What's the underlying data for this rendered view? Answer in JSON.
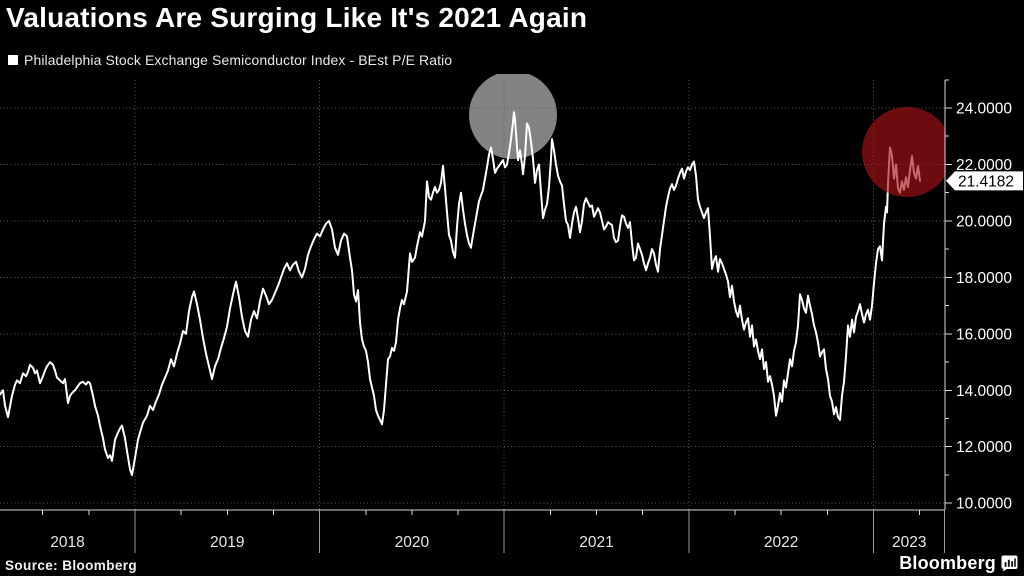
{
  "header": {
    "title": "Valuations Are Surging Like It's 2021 Again",
    "legend_label": "Philadelphia Stock Exchange Semiconductor Index - BEst P/E Ratio"
  },
  "footer": {
    "source": "Source: Bloomberg",
    "brand": "Bloomberg"
  },
  "colors": {
    "background": "#000000",
    "line": "#ffffff",
    "grid": "#5d5d5d",
    "axis": "#d9d9d9",
    "tick_label": "#ffffff",
    "year_label": "#e6e6e6",
    "gray_highlight": "#8e8e8e",
    "red_highlight": "#aa1216",
    "tag_bg": "#ffffff",
    "tag_text": "#000000"
  },
  "chart_data": {
    "type": "line",
    "title": "Valuations Are Surging Like It's 2021 Again",
    "series_name": "Philadelphia Stock Exchange Semiconductor Index - BEst P/E Ratio",
    "ylim": [
      10,
      24
    ],
    "y_major_ticks": [
      {
        "value": 24,
        "label": "24.0000"
      },
      {
        "value": 22,
        "label": "22.0000"
      },
      {
        "value": 20,
        "label": "20.0000"
      },
      {
        "value": 18,
        "label": "18.0000"
      },
      {
        "value": 16,
        "label": "16.0000"
      },
      {
        "value": 14,
        "label": "14.0000"
      },
      {
        "value": 12,
        "label": "12.0000"
      },
      {
        "value": 10,
        "label": "10.0000"
      }
    ],
    "y_minor_ticks": [
      25,
      23,
      21,
      19,
      17,
      15,
      13,
      11
    ],
    "x_year_labels": [
      "2018",
      "2019",
      "2020",
      "2021",
      "2022",
      "2023"
    ],
    "grid": "dotted",
    "legend_position": "top-left",
    "last_value": 21.4182,
    "last_value_label": "21.4182",
    "annotations": [
      {
        "shape": "circle",
        "note": "2020-21 peak highlight",
        "color": "#8e8e8e",
        "opacity": 0.92,
        "layer": "under-line"
      },
      {
        "shape": "circle",
        "note": "2023 surge highlight",
        "color": "#aa1216",
        "opacity": 0.64,
        "layer": "over-line"
      }
    ],
    "points": [
      [
        0,
        13.85
      ],
      [
        3,
        14.0
      ],
      [
        5,
        13.45
      ],
      [
        8,
        13.05
      ],
      [
        12,
        13.8
      ],
      [
        15,
        14.2
      ],
      [
        17,
        14.35
      ],
      [
        20,
        14.25
      ],
      [
        23,
        14.6
      ],
      [
        26,
        14.5
      ],
      [
        28,
        14.65
      ],
      [
        30,
        14.9
      ],
      [
        33,
        14.8
      ],
      [
        35,
        14.6
      ],
      [
        37,
        14.7
      ],
      [
        40,
        14.25
      ],
      [
        43,
        14.5
      ],
      [
        45,
        14.7
      ],
      [
        47,
        14.85
      ],
      [
        50,
        15.0
      ],
      [
        53,
        14.9
      ],
      [
        55,
        14.7
      ],
      [
        57,
        14.45
      ],
      [
        60,
        14.35
      ],
      [
        63,
        14.25
      ],
      [
        65,
        14.4
      ],
      [
        68,
        13.55
      ],
      [
        70,
        13.8
      ],
      [
        72,
        13.9
      ],
      [
        75,
        14.0
      ],
      [
        78,
        14.15
      ],
      [
        80,
        14.25
      ],
      [
        83,
        14.3
      ],
      [
        86,
        14.2
      ],
      [
        88,
        14.3
      ],
      [
        90,
        14.25
      ],
      [
        93,
        13.8
      ],
      [
        95,
        13.45
      ],
      [
        98,
        13.1
      ],
      [
        100,
        12.75
      ],
      [
        103,
        12.3
      ],
      [
        105,
        11.9
      ],
      [
        108,
        11.6
      ],
      [
        110,
        11.7
      ],
      [
        112,
        11.5
      ],
      [
        115,
        12.25
      ],
      [
        118,
        12.5
      ],
      [
        120,
        12.65
      ],
      [
        122,
        12.75
      ],
      [
        125,
        12.3
      ],
      [
        127,
        11.85
      ],
      [
        130,
        11.2
      ],
      [
        132,
        11.0
      ],
      [
        135,
        11.6
      ],
      [
        138,
        12.25
      ],
      [
        140,
        12.5
      ],
      [
        143,
        12.85
      ],
      [
        147,
        13.1
      ],
      [
        150,
        13.45
      ],
      [
        153,
        13.3
      ],
      [
        156,
        13.6
      ],
      [
        159,
        13.85
      ],
      [
        162,
        14.2
      ],
      [
        165,
        14.45
      ],
      [
        168,
        14.7
      ],
      [
        171,
        15.1
      ],
      [
        174,
        14.85
      ],
      [
        177,
        15.3
      ],
      [
        180,
        15.65
      ],
      [
        183,
        16.1
      ],
      [
        186,
        16.0
      ],
      [
        189,
        16.8
      ],
      [
        192,
        17.3
      ],
      [
        194,
        17.5
      ],
      [
        197,
        17.05
      ],
      [
        200,
        16.5
      ],
      [
        203,
        15.85
      ],
      [
        206,
        15.3
      ],
      [
        209,
        14.85
      ],
      [
        212,
        14.4
      ],
      [
        215,
        14.85
      ],
      [
        218,
        15.1
      ],
      [
        221,
        15.5
      ],
      [
        224,
        15.85
      ],
      [
        227,
        16.25
      ],
      [
        230,
        16.9
      ],
      [
        233,
        17.4
      ],
      [
        236,
        17.85
      ],
      [
        239,
        17.3
      ],
      [
        242,
        16.6
      ],
      [
        245,
        16.1
      ],
      [
        248,
        15.9
      ],
      [
        251,
        16.5
      ],
      [
        254,
        16.8
      ],
      [
        257,
        16.55
      ],
      [
        260,
        17.15
      ],
      [
        263,
        17.6
      ],
      [
        266,
        17.35
      ],
      [
        269,
        17.05
      ],
      [
        272,
        17.2
      ],
      [
        275,
        17.45
      ],
      [
        278,
        17.7
      ],
      [
        281,
        18.0
      ],
      [
        284,
        18.3
      ],
      [
        287,
        18.5
      ],
      [
        290,
        18.25
      ],
      [
        293,
        18.45
      ],
      [
        296,
        18.55
      ],
      [
        299,
        18.2
      ],
      [
        302,
        18.0
      ],
      [
        305,
        18.3
      ],
      [
        308,
        18.8
      ],
      [
        311,
        19.1
      ],
      [
        314,
        19.35
      ],
      [
        317,
        19.55
      ],
      [
        320,
        19.45
      ],
      [
        323,
        19.7
      ],
      [
        326,
        19.9
      ],
      [
        329,
        20.0
      ],
      [
        332,
        19.7
      ],
      [
        335,
        19.05
      ],
      [
        338,
        18.8
      ],
      [
        341,
        19.3
      ],
      [
        344,
        19.55
      ],
      [
        347,
        19.45
      ],
      [
        350,
        18.7
      ],
      [
        352,
        18.25
      ],
      [
        354,
        17.4
      ],
      [
        356,
        17.15
      ],
      [
        358,
        17.55
      ],
      [
        360,
        16.4
      ],
      [
        362,
        15.8
      ],
      [
        364,
        15.55
      ],
      [
        366,
        15.4
      ],
      [
        368,
        15.0
      ],
      [
        370,
        14.4
      ],
      [
        372,
        14.1
      ],
      [
        374,
        13.8
      ],
      [
        376,
        13.3
      ],
      [
        378,
        13.1
      ],
      [
        380,
        12.95
      ],
      [
        382,
        12.8
      ],
      [
        384,
        13.3
      ],
      [
        386,
        14.2
      ],
      [
        388,
        15.1
      ],
      [
        390,
        15.2
      ],
      [
        392,
        15.5
      ],
      [
        394,
        15.4
      ],
      [
        396,
        15.7
      ],
      [
        398,
        16.5
      ],
      [
        400,
        16.9
      ],
      [
        402,
        17.2
      ],
      [
        404,
        17.05
      ],
      [
        407,
        17.5
      ],
      [
        410,
        18.85
      ],
      [
        412,
        18.55
      ],
      [
        415,
        18.7
      ],
      [
        417,
        19.1
      ],
      [
        420,
        19.6
      ],
      [
        422,
        19.45
      ],
      [
        425,
        20.0
      ],
      [
        427,
        21.4
      ],
      [
        429,
        20.85
      ],
      [
        431,
        20.75
      ],
      [
        433,
        21.0
      ],
      [
        435,
        21.2
      ],
      [
        437,
        21.0
      ],
      [
        439,
        21.1
      ],
      [
        441,
        21.35
      ],
      [
        443,
        21.95
      ],
      [
        445,
        21.15
      ],
      [
        447,
        20.3
      ],
      [
        449,
        19.5
      ],
      [
        451,
        19.3
      ],
      [
        453,
        18.9
      ],
      [
        455,
        18.7
      ],
      [
        457,
        19.8
      ],
      [
        459,
        20.6
      ],
      [
        461,
        21.0
      ],
      [
        463,
        20.4
      ],
      [
        465,
        19.9
      ],
      [
        467,
        19.5
      ],
      [
        469,
        19.2
      ],
      [
        471,
        19.05
      ],
      [
        473,
        19.5
      ],
      [
        475,
        19.9
      ],
      [
        477,
        20.3
      ],
      [
        479,
        20.7
      ],
      [
        481,
        20.9
      ],
      [
        483,
        21.1
      ],
      [
        485,
        21.5
      ],
      [
        487,
        21.9
      ],
      [
        489,
        22.35
      ],
      [
        491,
        22.6
      ],
      [
        493,
        22.2
      ],
      [
        495,
        21.7
      ],
      [
        497,
        21.85
      ],
      [
        499,
        21.95
      ],
      [
        501,
        22.05
      ],
      [
        503,
        22.15
      ],
      [
        505,
        21.9
      ],
      [
        507,
        22.0
      ],
      [
        509,
        22.4
      ],
      [
        511,
        22.9
      ],
      [
        513,
        23.5
      ],
      [
        514,
        23.85
      ],
      [
        515,
        23.6
      ],
      [
        517,
        22.6
      ],
      [
        518,
        22.15
      ],
      [
        520,
        22.5
      ],
      [
        522,
        22.0
      ],
      [
        523,
        21.65
      ],
      [
        525,
        22.3
      ],
      [
        527,
        23.45
      ],
      [
        529,
        23.3
      ],
      [
        531,
        22.8
      ],
      [
        533,
        22.2
      ],
      [
        535,
        21.35
      ],
      [
        537,
        21.8
      ],
      [
        539,
        22.0
      ],
      [
        541,
        21.0
      ],
      [
        543,
        20.1
      ],
      [
        545,
        20.4
      ],
      [
        547,
        20.6
      ],
      [
        549,
        21.2
      ],
      [
        551,
        22.2
      ],
      [
        552,
        22.9
      ],
      [
        554,
        22.5
      ],
      [
        556,
        22.0
      ],
      [
        558,
        21.6
      ],
      [
        560,
        21.4
      ],
      [
        562,
        21.25
      ],
      [
        564,
        20.6
      ],
      [
        566,
        20.0
      ],
      [
        568,
        19.85
      ],
      [
        570,
        19.4
      ],
      [
        572,
        19.9
      ],
      [
        574,
        20.3
      ],
      [
        576,
        20.5
      ],
      [
        578,
        20.1
      ],
      [
        580,
        19.6
      ],
      [
        582,
        20.0
      ],
      [
        584,
        20.6
      ],
      [
        586,
        20.8
      ],
      [
        588,
        20.65
      ],
      [
        590,
        20.5
      ],
      [
        592,
        20.55
      ],
      [
        594,
        20.15
      ],
      [
        596,
        20.3
      ],
      [
        598,
        20.45
      ],
      [
        600,
        20.3
      ],
      [
        602,
        20.0
      ],
      [
        604,
        19.7
      ],
      [
        606,
        19.8
      ],
      [
        608,
        19.95
      ],
      [
        610,
        19.9
      ],
      [
        612,
        19.85
      ],
      [
        614,
        19.4
      ],
      [
        616,
        19.25
      ],
      [
        618,
        19.3
      ],
      [
        620,
        19.8
      ],
      [
        622,
        20.2
      ],
      [
        624,
        20.15
      ],
      [
        626,
        19.9
      ],
      [
        628,
        19.75
      ],
      [
        630,
        19.95
      ],
      [
        632,
        19.2
      ],
      [
        634,
        18.6
      ],
      [
        636,
        18.7
      ],
      [
        638,
        19.2
      ],
      [
        640,
        19.0
      ],
      [
        642,
        18.8
      ],
      [
        644,
        18.5
      ],
      [
        646,
        18.25
      ],
      [
        648,
        18.5
      ],
      [
        650,
        18.7
      ],
      [
        652,
        19.0
      ],
      [
        654,
        18.85
      ],
      [
        656,
        18.45
      ],
      [
        658,
        18.2
      ],
      [
        660,
        19.0
      ],
      [
        662,
        19.5
      ],
      [
        664,
        20.0
      ],
      [
        666,
        20.5
      ],
      [
        668,
        20.85
      ],
      [
        670,
        21.15
      ],
      [
        672,
        21.3
      ],
      [
        674,
        21.1
      ],
      [
        676,
        21.25
      ],
      [
        678,
        21.5
      ],
      [
        680,
        21.7
      ],
      [
        682,
        21.85
      ],
      [
        684,
        21.5
      ],
      [
        686,
        21.75
      ],
      [
        688,
        21.9
      ],
      [
        690,
        21.8
      ],
      [
        692,
        22.0
      ],
      [
        694,
        22.1
      ],
      [
        696,
        21.6
      ],
      [
        698,
        20.75
      ],
      [
        700,
        20.5
      ],
      [
        702,
        20.3
      ],
      [
        704,
        20.1
      ],
      [
        706,
        20.3
      ],
      [
        708,
        20.45
      ],
      [
        710,
        19.45
      ],
      [
        712,
        18.3
      ],
      [
        714,
        18.6
      ],
      [
        716,
        18.75
      ],
      [
        718,
        18.2
      ],
      [
        720,
        18.65
      ],
      [
        722,
        18.5
      ],
      [
        724,
        18.3
      ],
      [
        726,
        18.1
      ],
      [
        728,
        17.85
      ],
      [
        730,
        17.3
      ],
      [
        732,
        17.7
      ],
      [
        734,
        17.15
      ],
      [
        736,
        16.8
      ],
      [
        738,
        16.6
      ],
      [
        740,
        17.0
      ],
      [
        742,
        16.5
      ],
      [
        744,
        16.15
      ],
      [
        746,
        16.4
      ],
      [
        748,
        16.55
      ],
      [
        750,
        15.9
      ],
      [
        752,
        16.3
      ],
      [
        754,
        15.55
      ],
      [
        756,
        15.8
      ],
      [
        758,
        15.4
      ],
      [
        760,
        15.1
      ],
      [
        762,
        15.45
      ],
      [
        764,
        14.75
      ],
      [
        766,
        15.0
      ],
      [
        768,
        14.3
      ],
      [
        770,
        14.5
      ],
      [
        772,
        14.2
      ],
      [
        774,
        13.8
      ],
      [
        776,
        13.1
      ],
      [
        778,
        13.45
      ],
      [
        780,
        13.9
      ],
      [
        782,
        13.6
      ],
      [
        784,
        14.35
      ],
      [
        786,
        14.1
      ],
      [
        788,
        14.6
      ],
      [
        790,
        15.1
      ],
      [
        792,
        14.85
      ],
      [
        794,
        15.4
      ],
      [
        796,
        15.7
      ],
      [
        798,
        16.3
      ],
      [
        800,
        17.4
      ],
      [
        802,
        17.2
      ],
      [
        804,
        16.9
      ],
      [
        806,
        16.75
      ],
      [
        808,
        17.35
      ],
      [
        810,
        17.0
      ],
      [
        812,
        16.7
      ],
      [
        814,
        16.3
      ],
      [
        816,
        16.05
      ],
      [
        818,
        15.7
      ],
      [
        820,
        15.2
      ],
      [
        822,
        15.35
      ],
      [
        824,
        15.45
      ],
      [
        826,
        14.75
      ],
      [
        828,
        14.4
      ],
      [
        830,
        13.8
      ],
      [
        832,
        13.6
      ],
      [
        834,
        13.15
      ],
      [
        836,
        13.4
      ],
      [
        838,
        13.05
      ],
      [
        840,
        12.95
      ],
      [
        842,
        13.8
      ],
      [
        844,
        14.3
      ],
      [
        846,
        15.2
      ],
      [
        848,
        16.3
      ],
      [
        850,
        15.9
      ],
      [
        852,
        16.5
      ],
      [
        854,
        16.05
      ],
      [
        856,
        16.6
      ],
      [
        858,
        16.8
      ],
      [
        860,
        17.05
      ],
      [
        862,
        16.7
      ],
      [
        864,
        16.4
      ],
      [
        866,
        16.7
      ],
      [
        868,
        16.85
      ],
      [
        870,
        16.5
      ],
      [
        872,
        17.0
      ],
      [
        874,
        17.8
      ],
      [
        876,
        18.5
      ],
      [
        878,
        19.0
      ],
      [
        880,
        19.1
      ],
      [
        882,
        18.6
      ],
      [
        884,
        19.9
      ],
      [
        886,
        20.5
      ],
      [
        887,
        20.3
      ],
      [
        888,
        21.3
      ],
      [
        889,
        22.0
      ],
      [
        890,
        22.6
      ],
      [
        892,
        22.3
      ],
      [
        894,
        21.5
      ],
      [
        896,
        22.0
      ],
      [
        898,
        21.15
      ],
      [
        900,
        21.0
      ],
      [
        902,
        21.4
      ],
      [
        904,
        21.1
      ],
      [
        906,
        21.55
      ],
      [
        908,
        21.2
      ],
      [
        910,
        21.8
      ],
      [
        912,
        22.3
      ],
      [
        914,
        21.7
      ],
      [
        916,
        21.5
      ],
      [
        918,
        21.95
      ],
      [
        920,
        21.4182
      ]
    ]
  }
}
